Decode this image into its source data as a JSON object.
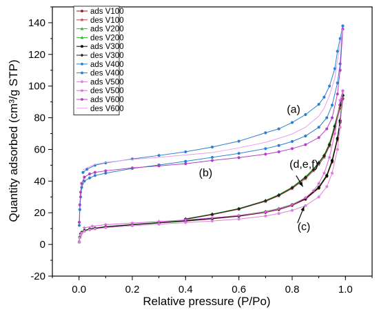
{
  "chart_data": {
    "type": "line",
    "title": "",
    "xlabel": "Relative pressure (P/Po)",
    "ylabel": "Quantity adsorbed (cm³/g STP)",
    "xlim": [
      -0.1,
      1.1
    ],
    "ylim": [
      -20,
      150
    ],
    "x_ticks": [
      "0.0",
      "0.2",
      "0.4",
      "0.6",
      "0.8",
      "1.0"
    ],
    "y_ticks": [
      "-20",
      "0",
      "20",
      "40",
      "60",
      "80",
      "100",
      "120",
      "140"
    ],
    "grid": false,
    "legend_position": "top-left",
    "series": [
      {
        "name": "ads V100",
        "color": "#8b1a1a",
        "marker": "dot",
        "x": [
          0.001,
          0.003,
          0.006,
          0.01,
          0.02,
          0.04,
          0.06,
          0.1,
          0.2,
          0.3,
          0.4,
          0.5,
          0.6,
          0.7,
          0.75,
          0.8,
          0.85,
          0.9,
          0.93,
          0.95,
          0.97,
          0.98,
          0.99
        ],
        "y": [
          1.5,
          4.5,
          6.5,
          7.5,
          8.6,
          9.6,
          10.1,
          11,
          12.4,
          13.6,
          14.7,
          16.2,
          17.8,
          20.2,
          22,
          24.6,
          28.5,
          35.5,
          43,
          52,
          66,
          77,
          92
        ]
      },
      {
        "name": "des V100",
        "color": "#b04a4a",
        "marker": "star",
        "x": [
          0.99,
          0.98,
          0.96,
          0.94,
          0.92,
          0.9,
          0.88,
          0.85,
          0.8,
          0.75,
          0.7,
          0.6,
          0.5,
          0.4
        ],
        "y": [
          92,
          86,
          73,
          62,
          55,
          50.5,
          46.5,
          41.5,
          35.3,
          30.7,
          27.2,
          22.2,
          18.8,
          15.8
        ]
      },
      {
        "name": "ads V200",
        "color": "#2db82d",
        "marker": "triangle",
        "x": [
          0.001,
          0.003,
          0.006,
          0.01,
          0.02,
          0.04,
          0.06,
          0.1,
          0.2,
          0.3,
          0.4,
          0.5,
          0.6,
          0.7,
          0.75,
          0.8,
          0.85,
          0.9,
          0.93,
          0.95,
          0.97,
          0.98,
          0.99
        ],
        "y": [
          1.7,
          4.8,
          6.8,
          7.8,
          8.9,
          9.9,
          10.4,
          11.3,
          12.7,
          13.9,
          15.1,
          16.6,
          18.3,
          20.8,
          22.7,
          25.3,
          29.4,
          36.5,
          44,
          53.5,
          67.5,
          79,
          95
        ]
      },
      {
        "name": "des V200",
        "color": "#2db82d",
        "marker": "triangle",
        "x": [
          0.99,
          0.98,
          0.96,
          0.94,
          0.92,
          0.9,
          0.88,
          0.85,
          0.8,
          0.75,
          0.7,
          0.6,
          0.5,
          0.4
        ],
        "y": [
          95,
          89,
          75.5,
          64,
          56.5,
          52,
          47.8,
          42.8,
          36.2,
          31.5,
          27.8,
          22.7,
          19.2,
          16.2
        ]
      },
      {
        "name": "ads V300",
        "color": "#000000",
        "marker": "dot",
        "x": [
          0.001,
          0.003,
          0.006,
          0.01,
          0.02,
          0.04,
          0.06,
          0.1,
          0.2,
          0.3,
          0.4,
          0.5,
          0.6,
          0.7,
          0.75,
          0.8,
          0.85,
          0.9,
          0.93,
          0.95,
          0.97,
          0.98,
          0.99
        ],
        "y": [
          1.6,
          4.6,
          6.6,
          7.6,
          8.7,
          9.7,
          10.2,
          11.1,
          12.5,
          13.7,
          14.9,
          16.4,
          18,
          20.5,
          22.4,
          25,
          29,
          36,
          43.5,
          53,
          67,
          78,
          94
        ]
      },
      {
        "name": "des V300",
        "color": "#222222",
        "marker": "diamond",
        "x": [
          0.99,
          0.98,
          0.96,
          0.94,
          0.92,
          0.9,
          0.88,
          0.85,
          0.8,
          0.75,
          0.7,
          0.6,
          0.5,
          0.4
        ],
        "y": [
          94,
          88,
          74.5,
          63,
          56,
          51.5,
          47.3,
          42.3,
          35.8,
          31.1,
          27.5,
          22.5,
          19,
          16
        ]
      },
      {
        "name": "ads V400",
        "color": "#2a7fd0",
        "marker": "dot",
        "x": [
          0.001,
          0.003,
          0.006,
          0.01,
          0.02,
          0.04,
          0.06,
          0.1,
          0.2,
          0.3,
          0.4,
          0.5,
          0.6,
          0.7,
          0.75,
          0.8,
          0.85,
          0.9,
          0.93,
          0.95,
          0.97,
          0.98,
          0.99
        ],
        "y": [
          12,
          22,
          30,
          36,
          40,
          42,
          43.5,
          45,
          48,
          50.2,
          52.5,
          55,
          57.5,
          60.5,
          62.5,
          65,
          68.5,
          74,
          80,
          88,
          102,
          114,
          138
        ]
      },
      {
        "name": "des V400",
        "color": "#2a7fd0",
        "marker": "dot",
        "x": [
          0.99,
          0.98,
          0.97,
          0.96,
          0.94,
          0.92,
          0.9,
          0.85,
          0.8,
          0.75,
          0.7,
          0.6,
          0.5,
          0.4,
          0.3,
          0.2,
          0.1,
          0.06,
          0.03,
          0.015
        ],
        "y": [
          138,
          130,
          122,
          111,
          100,
          93,
          88.5,
          82,
          77,
          73,
          70.5,
          65.2,
          61.5,
          58.5,
          56.2,
          54,
          51.5,
          50,
          47.5,
          45.5
        ]
      },
      {
        "name": "ads V500",
        "color": "#d982d9",
        "marker": "dot",
        "x": [
          0.001,
          0.003,
          0.006,
          0.01,
          0.02,
          0.04,
          0.06,
          0.1,
          0.2,
          0.3,
          0.4,
          0.5,
          0.6,
          0.7,
          0.75,
          0.8,
          0.85,
          0.9,
          0.93,
          0.95,
          0.97,
          0.98,
          0.99
        ],
        "y": [
          1.5,
          4.2,
          6,
          7.2,
          8.3,
          9.3,
          9.8,
          10.6,
          11.8,
          12.8,
          13.8,
          14.8,
          16,
          18,
          19.5,
          21.5,
          24.5,
          30,
          36.5,
          45,
          60,
          74,
          97
        ]
      },
      {
        "name": "des V500",
        "color": "#e060e0",
        "marker": "star",
        "x": [
          0.99,
          0.98,
          0.96,
          0.94,
          0.92,
          0.9,
          0.88,
          0.85,
          0.8,
          0.75,
          0.7,
          0.6,
          0.5,
          0.4,
          0.3,
          0.2,
          0.1,
          0.05,
          0.02
        ],
        "y": [
          97,
          91,
          70,
          55,
          45,
          38.5,
          34,
          29.5,
          25,
          22.5,
          20.5,
          18.3,
          16.8,
          15.5,
          14.5,
          13.5,
          12.5,
          11.5,
          10.5
        ]
      },
      {
        "name": "ads V600",
        "color": "#b040c0",
        "marker": "dot",
        "x": [
          0.001,
          0.003,
          0.006,
          0.01,
          0.02,
          0.04,
          0.06,
          0.1,
          0.2,
          0.3,
          0.4,
          0.5,
          0.6,
          0.7,
          0.75,
          0.8,
          0.85,
          0.9,
          0.93,
          0.95,
          0.97,
          0.98,
          0.99
        ],
        "y": [
          14,
          25,
          33,
          38.5,
          42.5,
          44.5,
          45.5,
          46.5,
          48.3,
          49.6,
          51,
          53,
          54.8,
          57,
          58.5,
          60.5,
          63,
          67.5,
          73,
          80,
          95,
          110,
          136
        ]
      },
      {
        "name": "des V600",
        "color": "#e8a0e8",
        "marker": "none",
        "x": [
          0.99,
          0.98,
          0.97,
          0.96,
          0.94,
          0.92,
          0.9,
          0.85,
          0.8,
          0.75,
          0.7,
          0.6,
          0.5,
          0.4,
          0.3,
          0.2,
          0.1,
          0.06,
          0.03,
          0.015
        ],
        "y": [
          136,
          126,
          116,
          105,
          94,
          86,
          81,
          74,
          69.8,
          67,
          64.5,
          61,
          58,
          56.5,
          55,
          53.7,
          51.8,
          50.5,
          48.5,
          47
        ]
      }
    ],
    "annotations": [
      {
        "text": "(a)",
        "x": 0.78,
        "y": 83
      },
      {
        "text": "(b)",
        "x": 0.45,
        "y": 43
      },
      {
        "text": "(d,e,f)",
        "x": 0.79,
        "y": 48.5
      },
      {
        "text": "(c)",
        "x": 0.82,
        "y": 9
      },
      {
        "text": "",
        "x_from": 0.815,
        "y_from": 43.5,
        "x_to": 0.84,
        "y_to": 36.5,
        "role": "arrow"
      },
      {
        "text": "",
        "x_from": 0.82,
        "y_from": 13.5,
        "x_to": 0.845,
        "y_to": 24,
        "role": "arrow"
      }
    ]
  }
}
